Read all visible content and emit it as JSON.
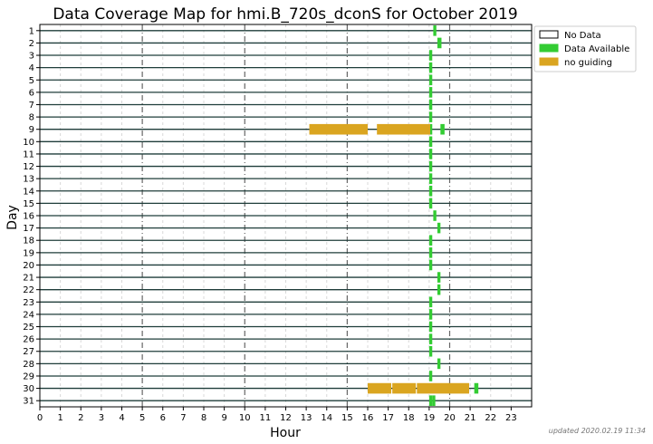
{
  "chart_data": {
    "type": "bar",
    "title": "Data Coverage Map for hmi.B_720s_dconS for October 2019",
    "xlabel": "Hour",
    "ylabel": "Day",
    "xlim": [
      0,
      24
    ],
    "x_ticks": [
      0,
      1,
      2,
      3,
      4,
      5,
      6,
      7,
      8,
      9,
      10,
      11,
      12,
      13,
      14,
      15,
      16,
      17,
      18,
      19,
      20,
      21,
      22,
      23
    ],
    "dashed_hours": [
      5,
      10,
      15,
      20
    ],
    "days": [
      "1",
      "2",
      "3",
      "4",
      "5",
      "6",
      "7",
      "8",
      "9",
      "10",
      "11",
      "12",
      "13",
      "14",
      "15",
      "16",
      "17",
      "18",
      "19",
      "20",
      "21",
      "22",
      "23",
      "24",
      "25",
      "26",
      "27",
      "28",
      "29",
      "30",
      "31"
    ],
    "legend": {
      "placement": "outside-right-top",
      "entries": [
        {
          "label": "No Data",
          "color": "#ffffff"
        },
        {
          "label": "Data Available",
          "color": "#33cc33"
        },
        {
          "label": "no guiding",
          "color": "#daa520"
        }
      ]
    },
    "series": [
      {
        "day": 1,
        "segments": [
          {
            "start": 19.2,
            "end": 19.35,
            "status": "available"
          }
        ]
      },
      {
        "day": 2,
        "segments": [
          {
            "start": 19.4,
            "end": 19.6,
            "status": "available"
          }
        ]
      },
      {
        "day": 3,
        "segments": [
          {
            "start": 19.0,
            "end": 19.15,
            "status": "available"
          }
        ]
      },
      {
        "day": 4,
        "segments": [
          {
            "start": 19.0,
            "end": 19.15,
            "status": "available"
          }
        ]
      },
      {
        "day": 5,
        "segments": [
          {
            "start": 19.0,
            "end": 19.15,
            "status": "available"
          }
        ]
      },
      {
        "day": 6,
        "segments": [
          {
            "start": 19.0,
            "end": 19.15,
            "status": "available"
          }
        ]
      },
      {
        "day": 7,
        "segments": [
          {
            "start": 19.0,
            "end": 19.15,
            "status": "available"
          }
        ]
      },
      {
        "day": 8,
        "segments": [
          {
            "start": 19.0,
            "end": 19.15,
            "status": "available"
          }
        ]
      },
      {
        "day": 9,
        "segments": [
          {
            "start": 13.15,
            "end": 16.0,
            "status": "no_guiding"
          },
          {
            "start": 16.45,
            "end": 19.05,
            "status": "no_guiding"
          },
          {
            "start": 19.05,
            "end": 19.15,
            "status": "available"
          },
          {
            "start": 19.55,
            "end": 19.75,
            "status": "available"
          }
        ]
      },
      {
        "day": 10,
        "segments": [
          {
            "start": 19.0,
            "end": 19.15,
            "status": "available"
          }
        ]
      },
      {
        "day": 11,
        "segments": [
          {
            "start": 19.0,
            "end": 19.15,
            "status": "available"
          }
        ]
      },
      {
        "day": 12,
        "segments": [
          {
            "start": 19.0,
            "end": 19.15,
            "status": "available"
          }
        ]
      },
      {
        "day": 13,
        "segments": [
          {
            "start": 19.0,
            "end": 19.15,
            "status": "available"
          }
        ]
      },
      {
        "day": 14,
        "segments": [
          {
            "start": 19.0,
            "end": 19.15,
            "status": "available"
          }
        ]
      },
      {
        "day": 15,
        "segments": [
          {
            "start": 19.0,
            "end": 19.15,
            "status": "available"
          }
        ]
      },
      {
        "day": 16,
        "segments": [
          {
            "start": 19.2,
            "end": 19.35,
            "status": "available"
          }
        ]
      },
      {
        "day": 17,
        "segments": [
          {
            "start": 19.4,
            "end": 19.55,
            "status": "available"
          }
        ]
      },
      {
        "day": 18,
        "segments": [
          {
            "start": 19.0,
            "end": 19.15,
            "status": "available"
          }
        ]
      },
      {
        "day": 19,
        "segments": [
          {
            "start": 19.0,
            "end": 19.15,
            "status": "available"
          }
        ]
      },
      {
        "day": 20,
        "segments": [
          {
            "start": 19.0,
            "end": 19.15,
            "status": "available"
          }
        ]
      },
      {
        "day": 21,
        "segments": [
          {
            "start": 19.4,
            "end": 19.55,
            "status": "available"
          }
        ]
      },
      {
        "day": 22,
        "segments": [
          {
            "start": 19.4,
            "end": 19.55,
            "status": "available"
          }
        ]
      },
      {
        "day": 23,
        "segments": [
          {
            "start": 19.0,
            "end": 19.15,
            "status": "available"
          }
        ]
      },
      {
        "day": 24,
        "segments": [
          {
            "start": 19.0,
            "end": 19.15,
            "status": "available"
          }
        ]
      },
      {
        "day": 25,
        "segments": [
          {
            "start": 19.0,
            "end": 19.15,
            "status": "available"
          }
        ]
      },
      {
        "day": 26,
        "segments": [
          {
            "start": 19.0,
            "end": 19.15,
            "status": "available"
          }
        ]
      },
      {
        "day": 27,
        "segments": [
          {
            "start": 19.0,
            "end": 19.15,
            "status": "available"
          }
        ]
      },
      {
        "day": 28,
        "segments": [
          {
            "start": 19.4,
            "end": 19.55,
            "status": "available"
          }
        ]
      },
      {
        "day": 29,
        "segments": [
          {
            "start": 19.0,
            "end": 19.15,
            "status": "available"
          }
        ]
      },
      {
        "day": 30,
        "segments": [
          {
            "start": 16.0,
            "end": 17.15,
            "status": "no_guiding"
          },
          {
            "start": 17.2,
            "end": 18.35,
            "status": "no_guiding"
          },
          {
            "start": 18.4,
            "end": 20.95,
            "status": "no_guiding"
          },
          {
            "start": 21.2,
            "end": 21.4,
            "status": "available"
          }
        ]
      },
      {
        "day": 31,
        "segments": [
          {
            "start": 19.0,
            "end": 19.15,
            "status": "available"
          },
          {
            "start": 19.15,
            "end": 19.3,
            "status": "available"
          }
        ]
      }
    ],
    "colors": {
      "available": "#33cc33",
      "no_guiding": "#daa520",
      "row_line": "#1f3d3a",
      "dashed": "#666666",
      "grid": "#d8d8d8"
    }
  },
  "footer": {
    "updated": "updated 2020.02.19 11:34"
  }
}
